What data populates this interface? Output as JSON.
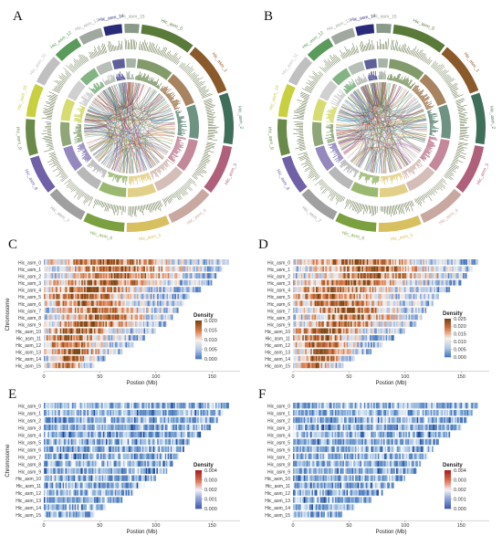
{
  "panels": [
    {
      "letter": "A",
      "type": "circos"
    },
    {
      "letter": "B",
      "type": "circos"
    },
    {
      "letter": "C",
      "type": "density",
      "palette": "warm",
      "max_density": 0.02
    },
    {
      "letter": "D",
      "type": "density",
      "palette": "warm",
      "max_density": 0.025
    },
    {
      "letter": "E",
      "type": "density",
      "palette": "cool",
      "max_density": 0.004
    },
    {
      "letter": "F",
      "type": "density",
      "palette": "cool",
      "max_density": 0.004
    }
  ],
  "chromosomes": [
    "Hic_asm_0",
    "Hic_asm_1",
    "Hic_asm_2",
    "Hic_asm_3",
    "Hic_asm_4",
    "Hic_asm_5",
    "Hic_asm_6",
    "Hic_asm_7",
    "Hic_asm_8",
    "Hic_asm_9",
    "Hic_asm_10",
    "Hic_asm_11",
    "Hic_asm_12",
    "Hic_asm_13",
    "Hic_asm_14",
    "Hic_asm_15"
  ],
  "circos_labels": [
    "Hic_asm_0",
    "Hic_asm_1",
    "Hic_asm_2",
    "Hic_asm_3",
    "Hic_asm_4",
    "Hic_asm_5",
    "Hic_asm_6",
    "Hic_asm_7",
    "Hic_asm_8",
    "Hic_asm_9",
    "Hic_asm_10",
    "Hic_asm_11",
    "Hic_asm_12",
    "Hic_asm_13",
    "Hic_asm_14",
    "Hic_asm_15"
  ],
  "circos_colors": [
    "#5a7a3a",
    "#8a5a2a",
    "#3f6f5a",
    "#b0607a",
    "#c8a8a0",
    "#d8c060",
    "#7aa040",
    "#a0a0a0",
    "#7060a8",
    "#6a8a4a",
    "#c8d040",
    "#c0c0c0",
    "#5a9a5a",
    "#a0a8a0",
    "#2a2a7a",
    "#8a9a8a"
  ],
  "chart_data": [
    {
      "panel": "C",
      "type": "heatmap",
      "categories": [
        "Hic_asm_0",
        "Hic_asm_1",
        "Hic_asm_2",
        "Hic_asm_3",
        "Hic_asm_4",
        "Hic_asm_5",
        "Hic_asm_6",
        "Hic_asm_7",
        "Hic_asm_8",
        "Hic_asm_9",
        "Hic_asm_10",
        "Hic_asm_11",
        "Hic_asm_12",
        "Hic_asm_13",
        "Hic_asm_14",
        "Hic_asm_15"
      ],
      "chromosome_length_mb": [
        165,
        160,
        155,
        150,
        140,
        130,
        125,
        120,
        115,
        110,
        100,
        90,
        80,
        70,
        55,
        45
      ],
      "xlabel": "Postion (Mb)",
      "ylabel": "Chromosome",
      "xticks": [
        0,
        50,
        100,
        150
      ],
      "xlim": [
        0,
        175
      ],
      "legend": {
        "title": "Density",
        "ticks": [
          0.02,
          0.015,
          0.01,
          0.005,
          0.0
        ],
        "tick_labels": [
          "0.020",
          "0.015",
          "0.010",
          "0.005",
          "0.000"
        ]
      }
    },
    {
      "panel": "D",
      "type": "heatmap",
      "categories": [
        "Hic_asm_0",
        "Hic_asm_1",
        "Hic_asm_2",
        "Hic_asm_3",
        "Hic_asm_4",
        "Hic_asm_5",
        "Hic_asm_6",
        "Hic_asm_7",
        "Hic_asm_8",
        "Hic_asm_9",
        "Hic_asm_10",
        "Hic_asm_11",
        "Hic_asm_12",
        "Hic_asm_13",
        "Hic_asm_14",
        "Hic_asm_15"
      ],
      "chromosome_length_mb": [
        165,
        160,
        155,
        150,
        140,
        130,
        125,
        120,
        115,
        110,
        100,
        90,
        80,
        70,
        55,
        45
      ],
      "xlabel": "Postion (Mb)",
      "ylabel": "",
      "xticks": [
        0,
        50,
        100,
        150
      ],
      "xlim": [
        0,
        175
      ],
      "legend": {
        "title": "Density",
        "ticks": [
          0.025,
          0.02,
          0.015,
          0.01,
          0.005,
          0.0
        ],
        "tick_labels": [
          "0.025",
          "0.020",
          "0.015",
          "0.010",
          "0.005",
          "0.000"
        ]
      }
    },
    {
      "panel": "E",
      "type": "heatmap",
      "categories": [
        "Hic_asm_0",
        "Hic_asm_1",
        "Hic_asm_2",
        "Hic_asm_3",
        "Hic_asm_4",
        "Hic_asm_5",
        "Hic_asm_6",
        "Hic_asm_7",
        "Hic_asm_8",
        "Hic_asm_9",
        "Hic_asm_10",
        "Hic_asm_11",
        "Hic_asm_12",
        "Hic_asm_13",
        "Hic_asm_14",
        "Hic_asm_15"
      ],
      "chromosome_length_mb": [
        165,
        160,
        155,
        150,
        140,
        130,
        125,
        120,
        115,
        110,
        100,
        90,
        80,
        70,
        55,
        45
      ],
      "xlabel": "Postion (Mb)",
      "ylabel": "Chromosome",
      "xticks": [
        0,
        50,
        100,
        150
      ],
      "xlim": [
        0,
        175
      ],
      "legend": {
        "title": "Density",
        "ticks": [
          0.004,
          0.003,
          0.002,
          0.001,
          0.0
        ],
        "tick_labels": [
          "0.004",
          "0.003",
          "0.002",
          "0.001",
          "0.000"
        ]
      }
    },
    {
      "panel": "F",
      "type": "heatmap",
      "categories": [
        "Hic_asm_0",
        "Hic_asm_1",
        "Hic_asm_2",
        "Hic_asm_3",
        "Hic_asm_4",
        "Hic_asm_5",
        "Hic_asm_6",
        "Hic_asm_7",
        "Hic_asm_8",
        "Hic_asm_9",
        "Hic_asm_10",
        "Hic_asm_11",
        "Hic_asm_12",
        "Hic_asm_13",
        "Hic_asm_14",
        "Hic_asm_15"
      ],
      "chromosome_length_mb": [
        165,
        160,
        155,
        150,
        140,
        130,
        125,
        120,
        115,
        110,
        100,
        90,
        80,
        70,
        55,
        45
      ],
      "xlabel": "Postion (Mb)",
      "ylabel": "",
      "xticks": [
        0,
        50,
        100,
        150
      ],
      "xlim": [
        0,
        175
      ],
      "legend": {
        "title": "Density",
        "ticks": [
          0.004,
          0.003,
          0.002,
          0.001,
          0.0
        ],
        "tick_labels": [
          "0.004",
          "0.003",
          "0.002",
          "0.001",
          "0.000"
        ]
      }
    }
  ]
}
